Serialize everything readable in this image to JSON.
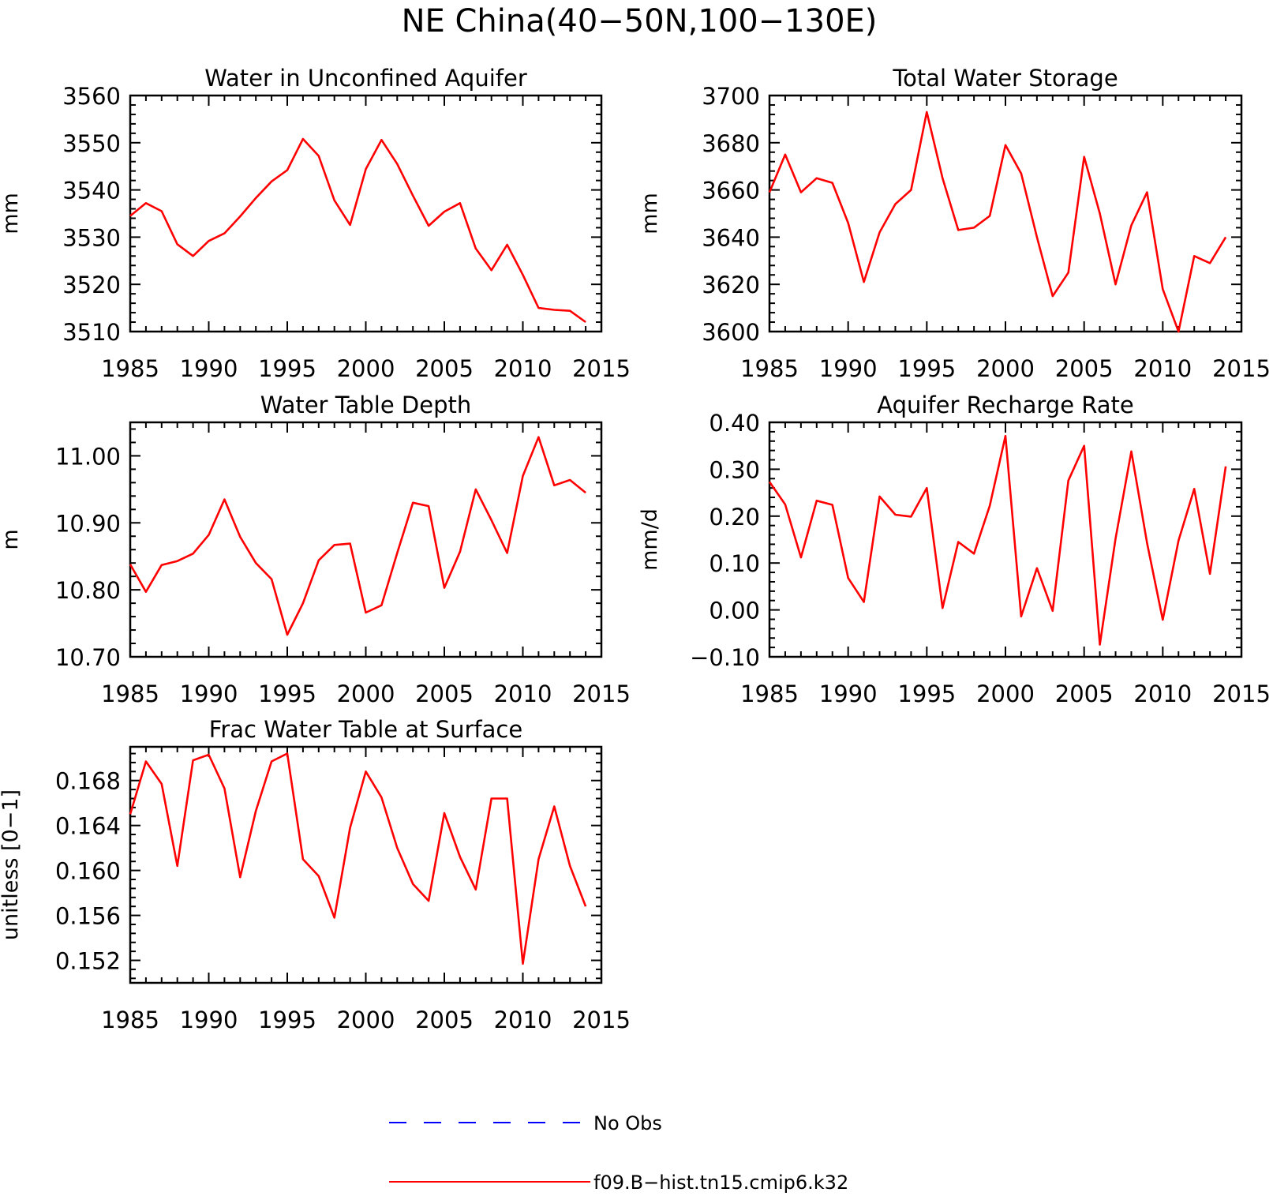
{
  "figure_title": "NE China(40−50N,100−130E)",
  "colors": {
    "model": "#ff0000",
    "obs": "#0000ff",
    "axis": "#000000"
  },
  "legend": [
    {
      "label": "No Obs",
      "color": "#0000ff",
      "style": "dashed"
    },
    {
      "label": "f09.B−hist.tn15.cmip6.k32",
      "color": "#ff0000",
      "style": "solid"
    }
  ],
  "chart_data": [
    {
      "type": "line",
      "title": "Water in Unconfined Aquifer",
      "ylabel": "mm",
      "xlim": [
        1985,
        2015
      ],
      "ylim": [
        3510,
        3560
      ],
      "xticks": [
        1985,
        1990,
        1995,
        2000,
        2005,
        2010,
        2015
      ],
      "yticks": [
        3510,
        3520,
        3530,
        3540,
        3550,
        3560
      ],
      "ytick_labels": [
        "3510",
        "3520",
        "3530",
        "3540",
        "3550",
        "3560"
      ],
      "series": [
        {
          "x": [
            1985,
            1986,
            1987,
            1988,
            1989,
            1990,
            1991,
            1992,
            1993,
            1994,
            1995,
            1996,
            1997,
            1998,
            1999,
            2000,
            2001,
            2002,
            2003,
            2004,
            2005,
            2006,
            2007,
            2008,
            2009,
            2010,
            2011,
            2012,
            2013,
            2014
          ],
          "values": [
            3534.5,
            3537.2,
            3535.5,
            3528.5,
            3526.0,
            3529.2,
            3530.8,
            3534.4,
            3538.3,
            3541.8,
            3544.2,
            3550.8,
            3547.2,
            3537.8,
            3532.6,
            3544.4,
            3550.6,
            3545.5,
            3538.8,
            3532.4,
            3535.4,
            3537.2,
            3527.6,
            3523.0,
            3528.4,
            3522.0,
            3515.0,
            3514.6,
            3514.4,
            3512.0
          ]
        }
      ]
    },
    {
      "type": "line",
      "title": "Total Water Storage",
      "ylabel": "mm",
      "xlim": [
        1985,
        2015
      ],
      "ylim": [
        3600,
        3700
      ],
      "xticks": [
        1985,
        1990,
        1995,
        2000,
        2005,
        2010,
        2015
      ],
      "yticks": [
        3600,
        3620,
        3640,
        3660,
        3680,
        3700
      ],
      "ytick_labels": [
        "3600",
        "3620",
        "3640",
        "3660",
        "3680",
        "3700"
      ],
      "series": [
        {
          "x": [
            1985,
            1986,
            1987,
            1988,
            1989,
            1990,
            1991,
            1992,
            1993,
            1994,
            1995,
            1996,
            1997,
            1998,
            1999,
            2000,
            2001,
            2002,
            2003,
            2004,
            2005,
            2006,
            2007,
            2008,
            2009,
            2010,
            2011,
            2012,
            2013,
            2014
          ],
          "values": [
            3659,
            3675,
            3659,
            3665,
            3663,
            3646,
            3621,
            3642,
            3654,
            3660,
            3693,
            3665,
            3643,
            3644,
            3649,
            3679,
            3667,
            3640,
            3615,
            3625,
            3674,
            3650,
            3620,
            3645,
            3659,
            3618,
            3600,
            3632,
            3629,
            3640
          ]
        }
      ]
    },
    {
      "type": "line",
      "title": "Water Table Depth",
      "ylabel": "m",
      "xlim": [
        1985,
        2015
      ],
      "ylim": [
        10.7,
        11.05
      ],
      "xticks": [
        1985,
        1990,
        1995,
        2000,
        2005,
        2010,
        2015
      ],
      "yticks": [
        10.7,
        10.8,
        10.9,
        11.0
      ],
      "ytick_labels": [
        "10.70",
        "10.80",
        "10.90",
        "11.00"
      ],
      "series": [
        {
          "x": [
            1985,
            1986,
            1987,
            1988,
            1989,
            1990,
            1991,
            1992,
            1993,
            1994,
            1995,
            1996,
            1997,
            1998,
            1999,
            2000,
            2001,
            2002,
            2003,
            2004,
            2005,
            2006,
            2007,
            2008,
            2009,
            2010,
            2011,
            2012,
            2013,
            2014
          ],
          "values": [
            10.838,
            10.797,
            10.837,
            10.843,
            10.854,
            10.882,
            10.935,
            10.879,
            10.84,
            10.816,
            10.733,
            10.78,
            10.844,
            10.867,
            10.869,
            10.766,
            10.777,
            10.855,
            10.93,
            10.925,
            10.803,
            10.857,
            10.95,
            10.904,
            10.855,
            10.97,
            11.028,
            10.956,
            10.964,
            10.945
          ]
        }
      ]
    },
    {
      "type": "line",
      "title": "Aquifer Recharge Rate",
      "ylabel": "mm/d",
      "xlim": [
        1985,
        2015
      ],
      "ylim": [
        -0.1,
        0.4
      ],
      "xticks": [
        1985,
        1990,
        1995,
        2000,
        2005,
        2010,
        2015
      ],
      "yticks": [
        -0.1,
        0.0,
        0.1,
        0.2,
        0.3,
        0.4
      ],
      "ytick_labels": [
        "−0.10",
        "0.00",
        "0.10",
        "0.20",
        "0.30",
        "0.40"
      ],
      "series": [
        {
          "x": [
            1985,
            1986,
            1987,
            1988,
            1989,
            1990,
            1991,
            1992,
            1993,
            1994,
            1995,
            1996,
            1997,
            1998,
            1999,
            2000,
            2001,
            2002,
            2003,
            2004,
            2005,
            2006,
            2007,
            2008,
            2009,
            2010,
            2011,
            2012,
            2013,
            2014
          ],
          "values": [
            0.273,
            0.225,
            0.112,
            0.233,
            0.224,
            0.068,
            0.017,
            0.242,
            0.203,
            0.199,
            0.26,
            0.004,
            0.145,
            0.12,
            0.222,
            0.371,
            -0.014,
            0.089,
            -0.002,
            0.276,
            0.35,
            -0.074,
            0.152,
            0.338,
            0.143,
            -0.021,
            0.148,
            0.258,
            0.077,
            0.306
          ]
        }
      ]
    },
    {
      "type": "line",
      "title": "Frac Water Table at Surface",
      "ylabel": "unitless [0−1]",
      "xlim": [
        1985,
        2015
      ],
      "ylim": [
        0.15,
        0.171
      ],
      "xticks": [
        1985,
        1990,
        1995,
        2000,
        2005,
        2010,
        2015
      ],
      "yticks": [
        0.152,
        0.156,
        0.16,
        0.164,
        0.168
      ],
      "ytick_labels": [
        "0.152",
        "0.156",
        "0.160",
        "0.164",
        "0.168"
      ],
      "series": [
        {
          "x": [
            1985,
            1986,
            1987,
            1988,
            1989,
            1990,
            1991,
            1992,
            1993,
            1994,
            1995,
            1996,
            1997,
            1998,
            1999,
            2000,
            2001,
            2002,
            2003,
            2004,
            2005,
            2006,
            2007,
            2008,
            2009,
            2010,
            2011,
            2012,
            2013,
            2014
          ],
          "values": [
            0.165,
            0.1697,
            0.1677,
            0.1604,
            0.1698,
            0.1703,
            0.1673,
            0.1594,
            0.1653,
            0.1697,
            0.1704,
            0.161,
            0.1595,
            0.1558,
            0.1638,
            0.1688,
            0.1665,
            0.162,
            0.1588,
            0.1573,
            0.1651,
            0.1612,
            0.1583,
            0.1664,
            0.1664,
            0.1517,
            0.161,
            0.1657,
            0.1604,
            0.1568
          ]
        }
      ]
    }
  ]
}
